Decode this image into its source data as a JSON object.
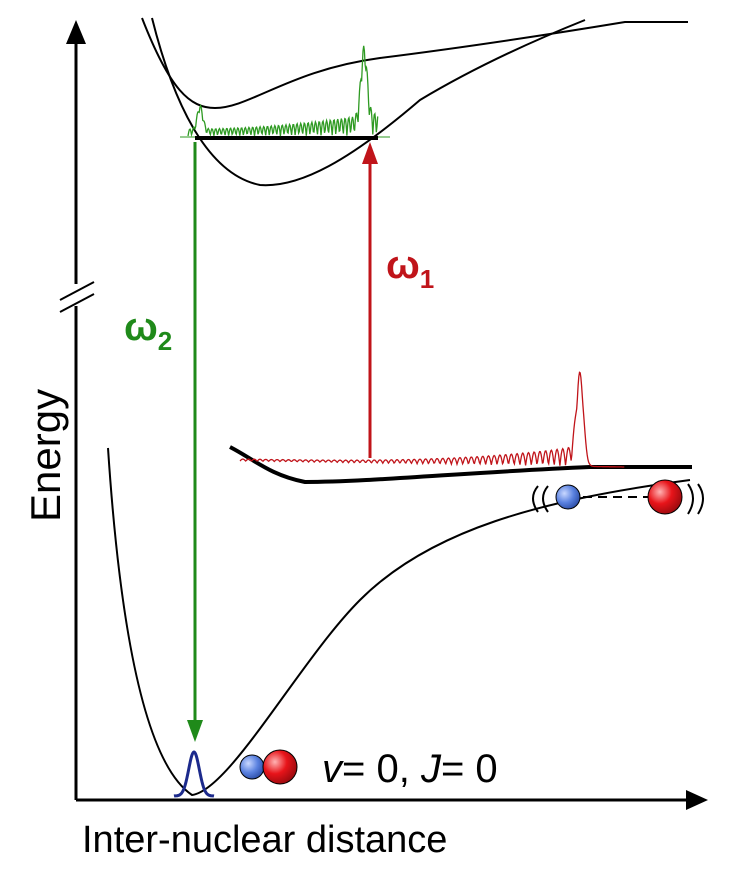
{
  "axes": {
    "y_label": "Energy",
    "x_label": "Inter-nuclear distance"
  },
  "transitions": {
    "omega1": {
      "symbol": "ω",
      "subscript": "1",
      "color": "#c0141a"
    },
    "omega2": {
      "symbol": "ω",
      "subscript": "2",
      "color": "#1f8a1a"
    }
  },
  "state_label": {
    "v_var": "v",
    "v_val": "= 0, ",
    "j_var": "J",
    "j_val": "= 0"
  },
  "colors": {
    "curve": "#000000",
    "excited_wavepacket": "#2e9a22",
    "continuum_wavepacket": "#c0141a",
    "ground_wavefunction": "#1c2a8c",
    "atom_blue": "#4a73d6",
    "atom_red": "#e0141a"
  }
}
